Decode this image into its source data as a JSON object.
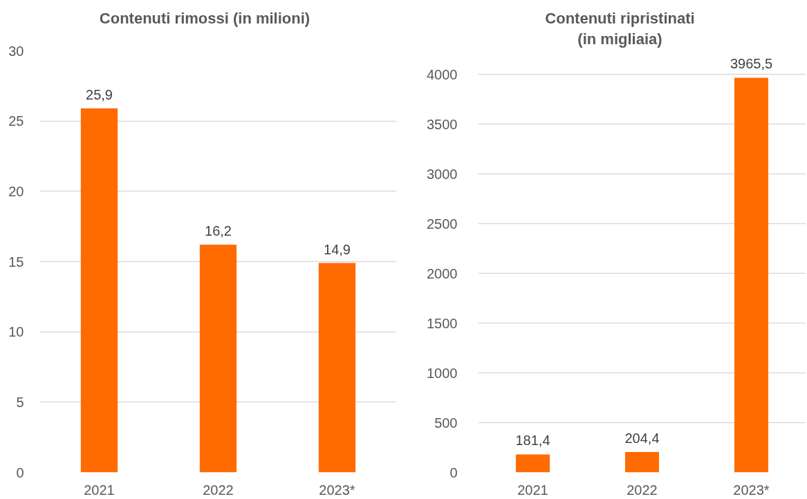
{
  "chart_data": [
    {
      "type": "bar",
      "title": "Contenuti rimossi (in milioni)",
      "categories": [
        "2021",
        "2022",
        "2023*"
      ],
      "series": [
        {
          "color": "#ff6b00",
          "values": [
            25.9,
            16.2,
            14.9
          ],
          "value_labels": [
            "25,9",
            "16,2",
            "14,9"
          ]
        }
      ],
      "ylim": [
        0,
        30
      ],
      "yticks": [
        0,
        5,
        10,
        15,
        20,
        25,
        30
      ],
      "grid": "y"
    },
    {
      "type": "bar",
      "title": "Contenuti ripristinati\n(in migliaia)",
      "categories": [
        "2021",
        "2022",
        "2023*"
      ],
      "series": [
        {
          "color": "#ff6b00",
          "values": [
            181.4,
            204.4,
            3965.5
          ],
          "value_labels": [
            "181,4",
            "204,4",
            "3965,5"
          ]
        }
      ],
      "ylim": [
        0,
        4000
      ],
      "yticks": [
        0,
        500,
        1000,
        1500,
        2000,
        2500,
        3000,
        3500,
        4000
      ],
      "grid": "y"
    }
  ]
}
